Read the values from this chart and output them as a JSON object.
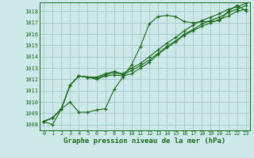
{
  "title": "Graphe pression niveau de la mer (hPa)",
  "bg_color": "#cce8e8",
  "grid_color": "#aacccc",
  "line_color": "#1a6b1a",
  "text_color": "#1a6b1a",
  "xlim": [
    -0.5,
    23.5
  ],
  "ylim": [
    1007.5,
    1018.8
  ],
  "xticks": [
    0,
    1,
    2,
    3,
    4,
    5,
    6,
    7,
    8,
    9,
    10,
    11,
    12,
    13,
    14,
    15,
    16,
    17,
    18,
    19,
    20,
    21,
    22,
    23
  ],
  "yticks": [
    1008,
    1009,
    1010,
    1011,
    1012,
    1013,
    1014,
    1015,
    1016,
    1017,
    1018
  ],
  "series": [
    [
      1008.3,
      1008.0,
      1009.4,
      1010.0,
      1009.1,
      1009.1,
      1009.3,
      1009.4,
      1011.1,
      1012.2,
      1013.3,
      1014.9,
      1016.9,
      1017.55,
      1017.65,
      1017.55,
      1017.1,
      1017.0,
      1017.1,
      1017.1,
      1017.2,
      1018.0,
      1018.55,
      1018.05
    ],
    [
      1008.3,
      1008.6,
      1009.4,
      1011.5,
      1012.3,
      1012.2,
      1012.0,
      1012.3,
      1012.4,
      1012.3,
      1012.5,
      1013.0,
      1013.5,
      1014.2,
      1014.8,
      1015.3,
      1015.9,
      1016.3,
      1016.7,
      1017.0,
      1017.3,
      1017.6,
      1018.0,
      1018.2
    ],
    [
      1008.3,
      1008.6,
      1009.4,
      1011.5,
      1012.3,
      1012.2,
      1012.1,
      1012.4,
      1012.6,
      1012.4,
      1012.8,
      1013.2,
      1013.7,
      1014.3,
      1014.9,
      1015.4,
      1016.0,
      1016.4,
      1016.9,
      1017.2,
      1017.5,
      1017.9,
      1018.2,
      1018.5
    ],
    [
      1008.3,
      1008.6,
      1009.4,
      1011.5,
      1012.3,
      1012.2,
      1012.2,
      1012.5,
      1012.7,
      1012.5,
      1013.0,
      1013.4,
      1014.0,
      1014.6,
      1015.2,
      1015.7,
      1016.3,
      1016.8,
      1017.2,
      1017.5,
      1017.8,
      1018.2,
      1018.4,
      1018.7
    ]
  ],
  "tick_fontsize": 5.0,
  "label_fontsize": 6.5
}
